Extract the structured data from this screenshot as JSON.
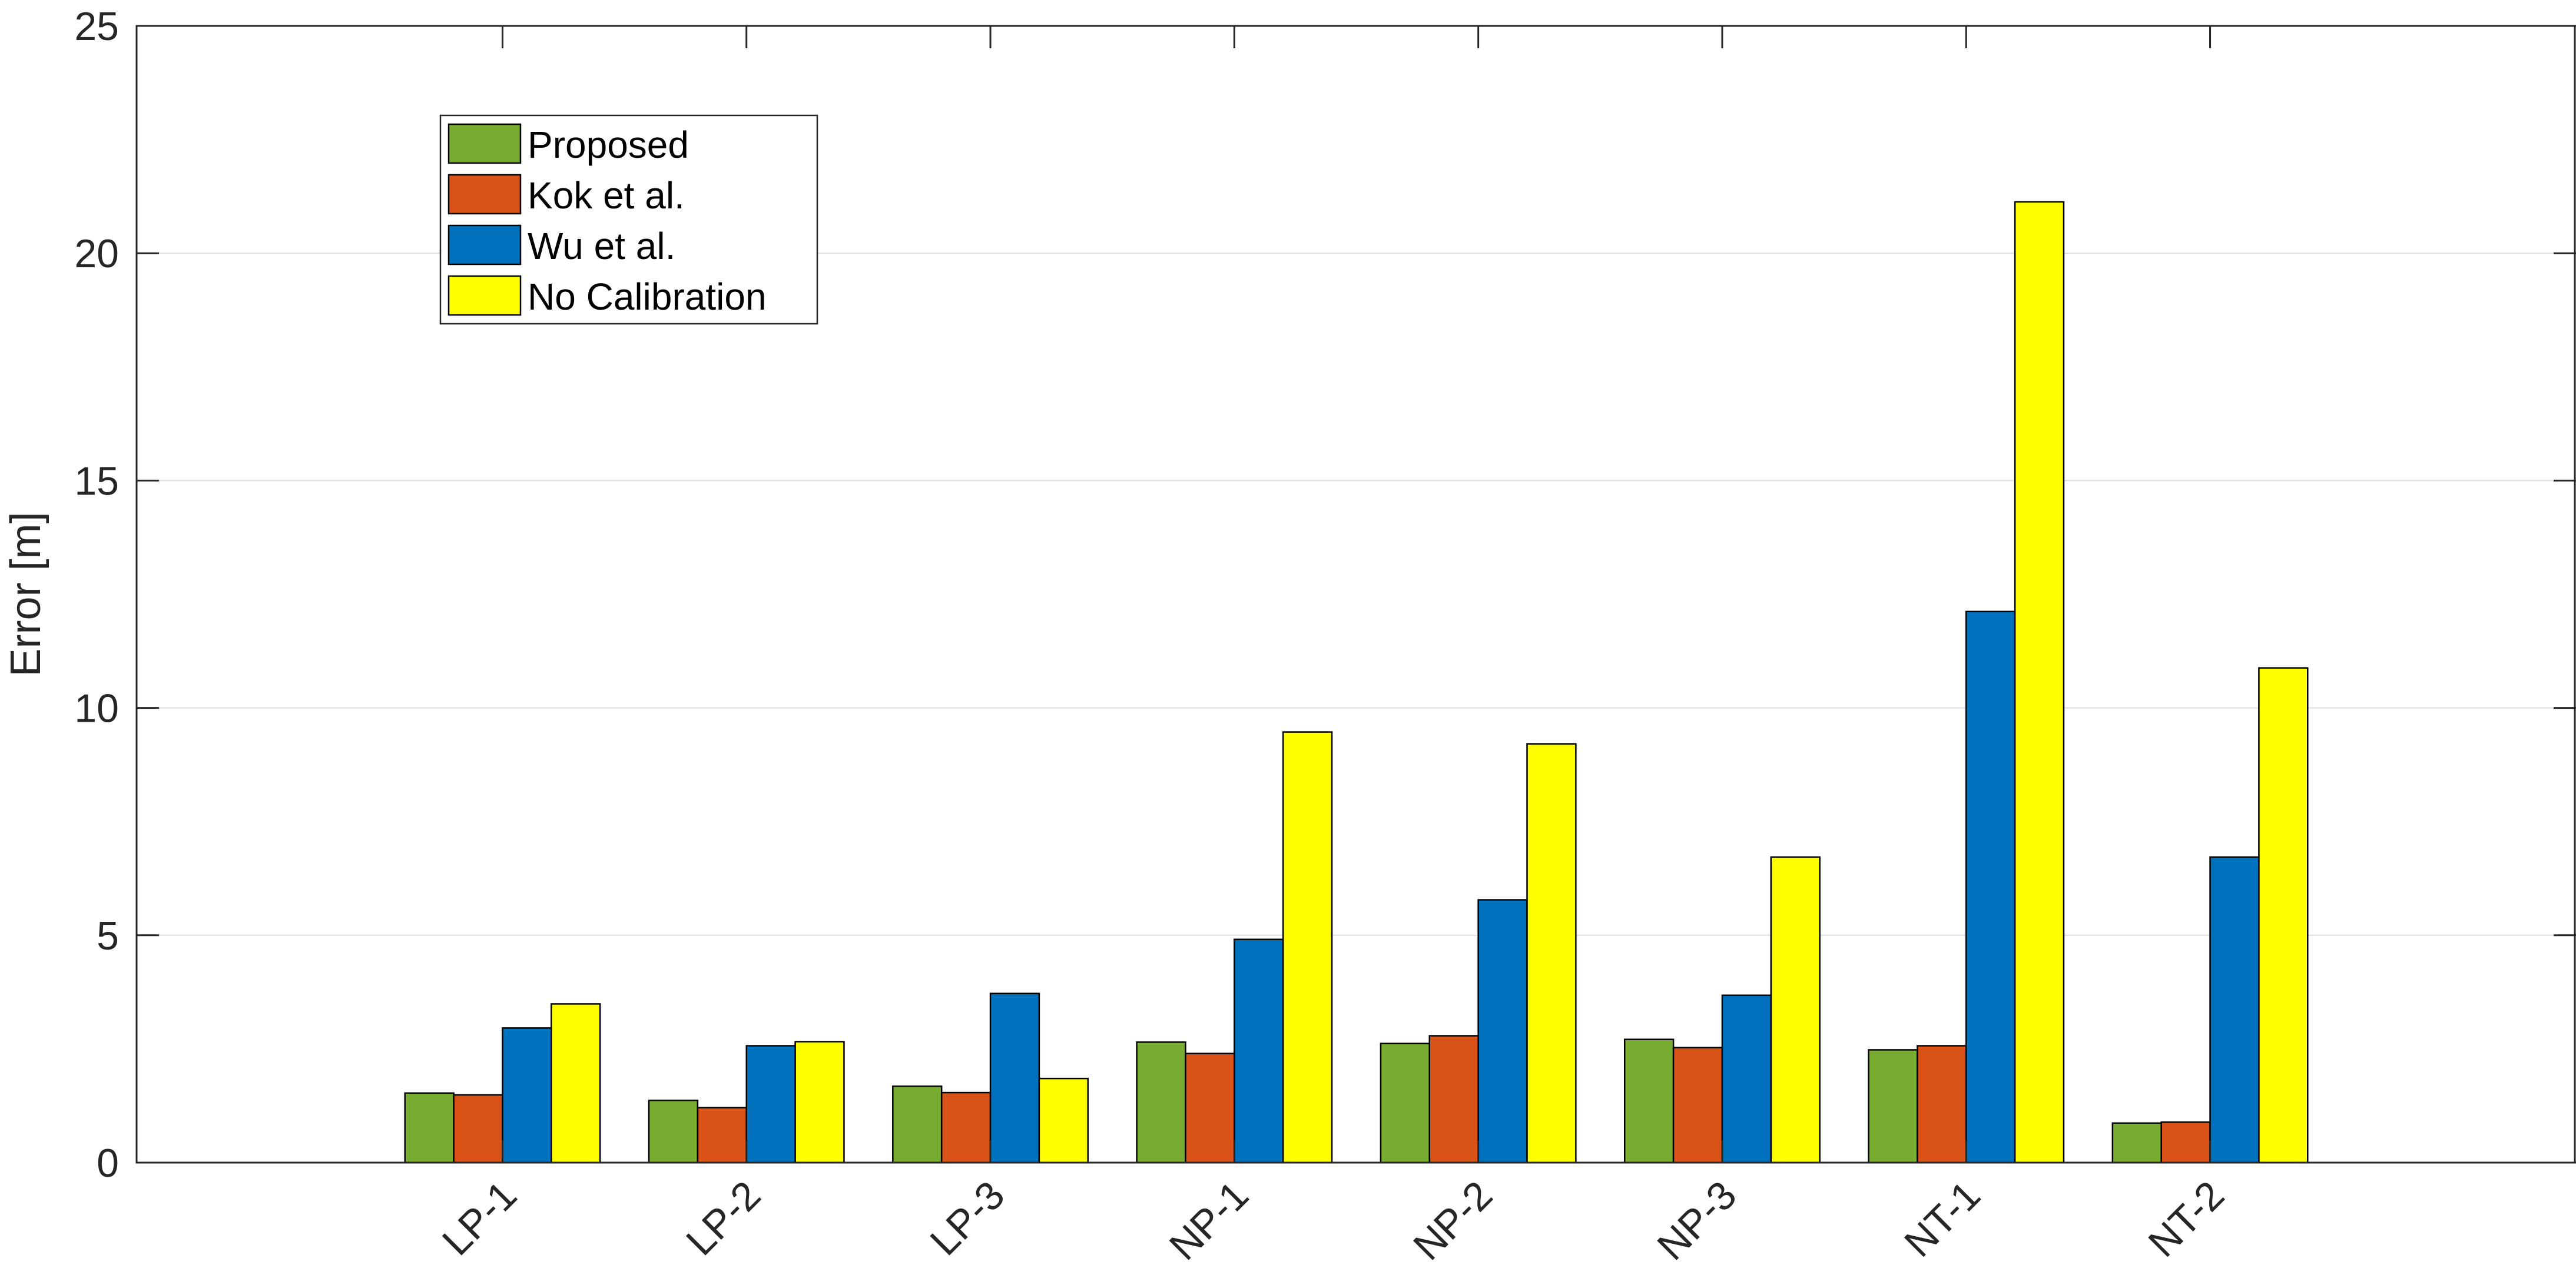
{
  "chart_data": {
    "type": "bar",
    "title": "",
    "xlabel": "",
    "ylabel": "Error [m]",
    "ylim": [
      0,
      25
    ],
    "yticks": [
      "0",
      "5",
      "10",
      "15",
      "20",
      "25"
    ],
    "categories": [
      "LP-1",
      "LP-2",
      "LP-3",
      "NP-1",
      "NP-2",
      "NP-3",
      "NT-1",
      "NT-2"
    ],
    "grid": true,
    "legend_position": "top-left",
    "series": [
      {
        "name": "Proposed",
        "color": "#77ac30",
        "values": [
          1.53,
          1.37,
          1.68,
          2.65,
          2.62,
          2.71,
          2.48,
          0.87
        ]
      },
      {
        "name": "Kok et al.",
        "color": "#d95319",
        "values": [
          1.49,
          1.21,
          1.54,
          2.4,
          2.79,
          2.53,
          2.57,
          0.89
        ]
      },
      {
        "name": "Wu et al.",
        "color": "#0072bd",
        "values": [
          2.96,
          2.57,
          3.72,
          4.91,
          5.78,
          3.68,
          12.12,
          6.72
        ]
      },
      {
        "name": "No Calibration",
        "color": "#ffff00",
        "values": [
          3.49,
          2.66,
          1.85,
          9.47,
          9.21,
          6.72,
          21.13,
          10.88
        ]
      }
    ]
  }
}
